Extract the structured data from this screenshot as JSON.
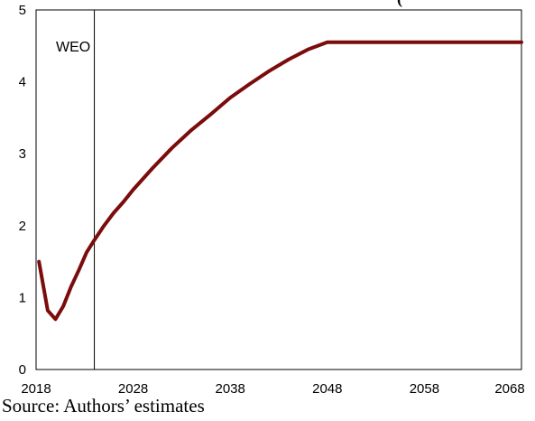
{
  "chart_data": {
    "type": "line",
    "title": "",
    "title_partial": "(",
    "xlabel": "",
    "ylabel": "",
    "xlim": [
      2018,
      2068
    ],
    "ylim": [
      0,
      5
    ],
    "x_ticks": [
      "2018",
      "2028",
      "2038",
      "2048",
      "2058",
      "2068"
    ],
    "y_ticks": [
      "0",
      "1",
      "2",
      "3",
      "4",
      "5"
    ],
    "grid": false,
    "legend": "none",
    "series": [
      {
        "color": "#7b0c0c",
        "x": [
          2018.3,
          2019.2,
          2020.0,
          2020.8,
          2021.6,
          2022.4,
          2023.2,
          2024.0,
          2025.0,
          2026.0,
          2027.0,
          2028.0,
          2030.0,
          2032.0,
          2034.0,
          2036.0,
          2038.0,
          2040.0,
          2042.0,
          2044.0,
          2046.0,
          2048.0,
          2049.0,
          2050.0,
          2055.0,
          2060.0,
          2065.0,
          2068.0
        ],
        "y": [
          1.5,
          0.82,
          0.7,
          0.88,
          1.15,
          1.38,
          1.63,
          1.8,
          2.0,
          2.18,
          2.33,
          2.5,
          2.8,
          3.08,
          3.33,
          3.55,
          3.78,
          3.97,
          4.15,
          4.31,
          4.45,
          4.55,
          4.55,
          4.55,
          4.55,
          4.55,
          4.55,
          4.55
        ]
      }
    ],
    "annotations": [
      {
        "text": "WEO",
        "x": 2024.0
      }
    ]
  },
  "source": "Source: Authors’ estimates"
}
